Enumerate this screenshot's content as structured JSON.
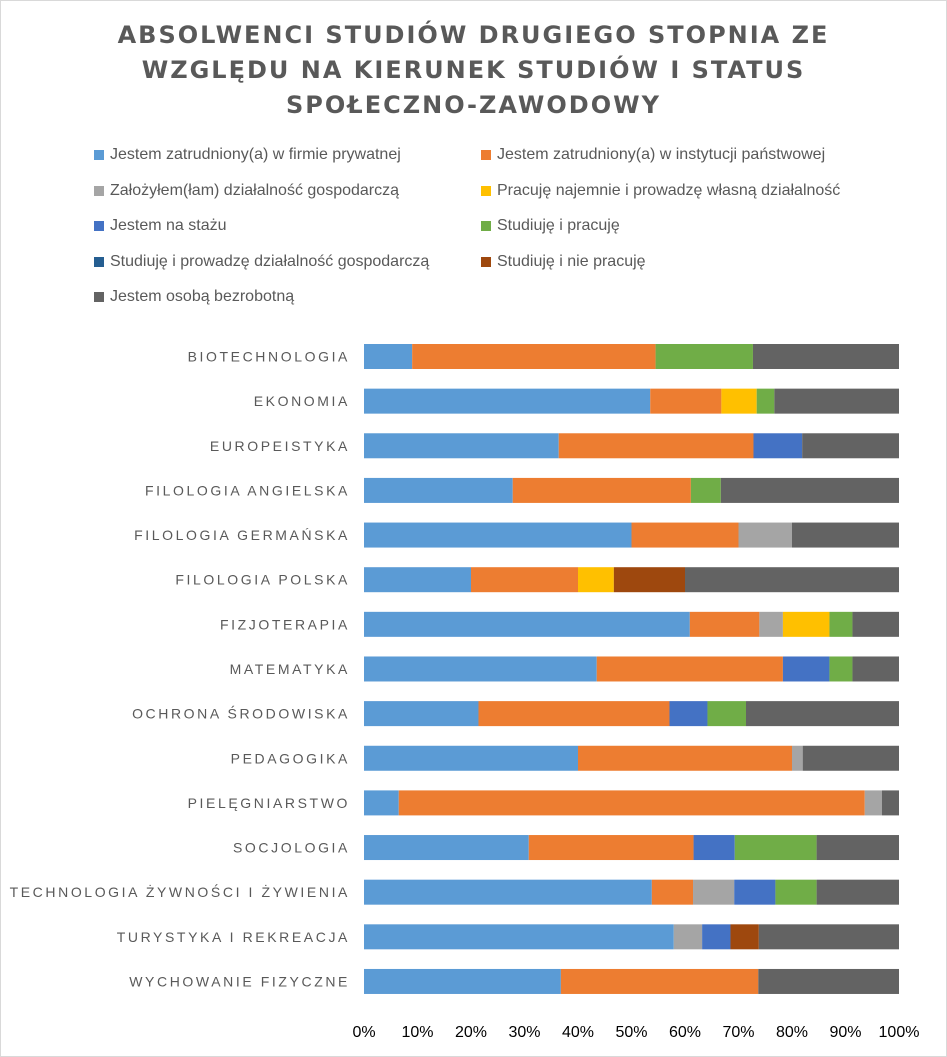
{
  "chart_data": {
    "type": "bar",
    "orientation": "horizontal",
    "stacked": "percent",
    "title_lines": [
      "ABSOLWENCI STUDIÓW DRUGIEGO STOPNIA ZE",
      "WZGLĘDU NA KIERUNEK STUDIÓW I STATUS",
      "SPOŁECZNO-ZAWODOWY"
    ],
    "xlabel": "",
    "ylabel": "",
    "xlim": [
      0,
      1
    ],
    "x_ticks": [
      "0%",
      "10%",
      "20%",
      "30%",
      "40%",
      "50%",
      "60%",
      "70%",
      "80%",
      "90%",
      "100%"
    ],
    "grid": false,
    "legend_position": "top",
    "categories": [
      "BIOTECHNOLOGIA",
      "EKONOMIA",
      "EUROPEISTYKA",
      "FILOLOGIA ANGIELSKA",
      "FILOLOGIA GERMAŃSKA",
      "FILOLOGIA POLSKA",
      "FIZJOTERAPIA",
      "MATEMATYKA",
      "OCHRONA ŚRODOWISKA",
      "PEDAGOGIKA",
      "PIELĘGNIARSTWO",
      "SOCJOLOGIA",
      "TECHNOLOGIA ŻYWNOŚCI I ŻYWIENIA",
      "TURYSTYKA I REKREACJA",
      "WYCHOWANIE FIZYCZNE"
    ],
    "series": [
      {
        "name": "Jestem zatrudniony(a) w firmie prywatnej",
        "color": "#5b9bd5",
        "values": [
          0.09,
          0.535,
          0.364,
          0.278,
          0.5,
          0.2,
          0.609,
          0.435,
          0.214,
          0.4,
          0.065,
          0.308,
          0.538,
          0.579,
          0.368
        ]
      },
      {
        "name": "Jestem zatrudniony(a) w instytucji państwowej",
        "color": "#ed7d31",
        "values": [
          0.455,
          0.133,
          0.364,
          0.333,
          0.2,
          0.2,
          0.13,
          0.348,
          0.357,
          0.4,
          0.871,
          0.308,
          0.077,
          0.0,
          0.369
        ]
      },
      {
        "name": "Założyłem(łam) działalność gospodarczą",
        "color": "#a5a5a5",
        "values": [
          0.0,
          0.0,
          0.0,
          0.0,
          0.1,
          0.0,
          0.044,
          0.0,
          0.0,
          0.02,
          0.032,
          0.0,
          0.077,
          0.053,
          0.0
        ]
      },
      {
        "name": "Pracuję najemnie i prowadzę własną działalność",
        "color": "#ffc000",
        "values": [
          0.0,
          0.066,
          0.0,
          0.0,
          0.0,
          0.067,
          0.087,
          0.0,
          0.0,
          0.0,
          0.0,
          0.0,
          0.0,
          0.0,
          0.0
        ]
      },
      {
        "name": "Jestem na stażu",
        "color": "#4472c4",
        "values": [
          0.0,
          0.0,
          0.091,
          0.0,
          0.0,
          0.0,
          0.0,
          0.087,
          0.071,
          0.0,
          0.0,
          0.077,
          0.077,
          0.053,
          0.0
        ]
      },
      {
        "name": "Studiuję i pracuję",
        "color": "#70ad47",
        "values": [
          0.182,
          0.033,
          0.0,
          0.056,
          0.0,
          0.0,
          0.043,
          0.043,
          0.072,
          0.0,
          0.0,
          0.153,
          0.077,
          0.0,
          0.0
        ]
      },
      {
        "name": "Studiuję i prowadzę działalność gospodarczą",
        "color": "#255e91",
        "values": [
          0.0,
          0.0,
          0.0,
          0.0,
          0.0,
          0.0,
          0.0,
          0.0,
          0.0,
          0.0,
          0.0,
          0.0,
          0.0,
          0.0,
          0.0
        ]
      },
      {
        "name": "Studiuję i nie pracuję",
        "color": "#9e480e",
        "values": [
          0.0,
          0.0,
          0.0,
          0.0,
          0.0,
          0.133,
          0.0,
          0.0,
          0.0,
          0.0,
          0.0,
          0.0,
          0.0,
          0.053,
          0.0
        ]
      },
      {
        "name": "Jestem osobą bezrobotną",
        "color": "#636363",
        "values": [
          0.273,
          0.233,
          0.181,
          0.333,
          0.2,
          0.4,
          0.087,
          0.087,
          0.286,
          0.18,
          0.032,
          0.154,
          0.154,
          0.262,
          0.263
        ]
      }
    ]
  }
}
